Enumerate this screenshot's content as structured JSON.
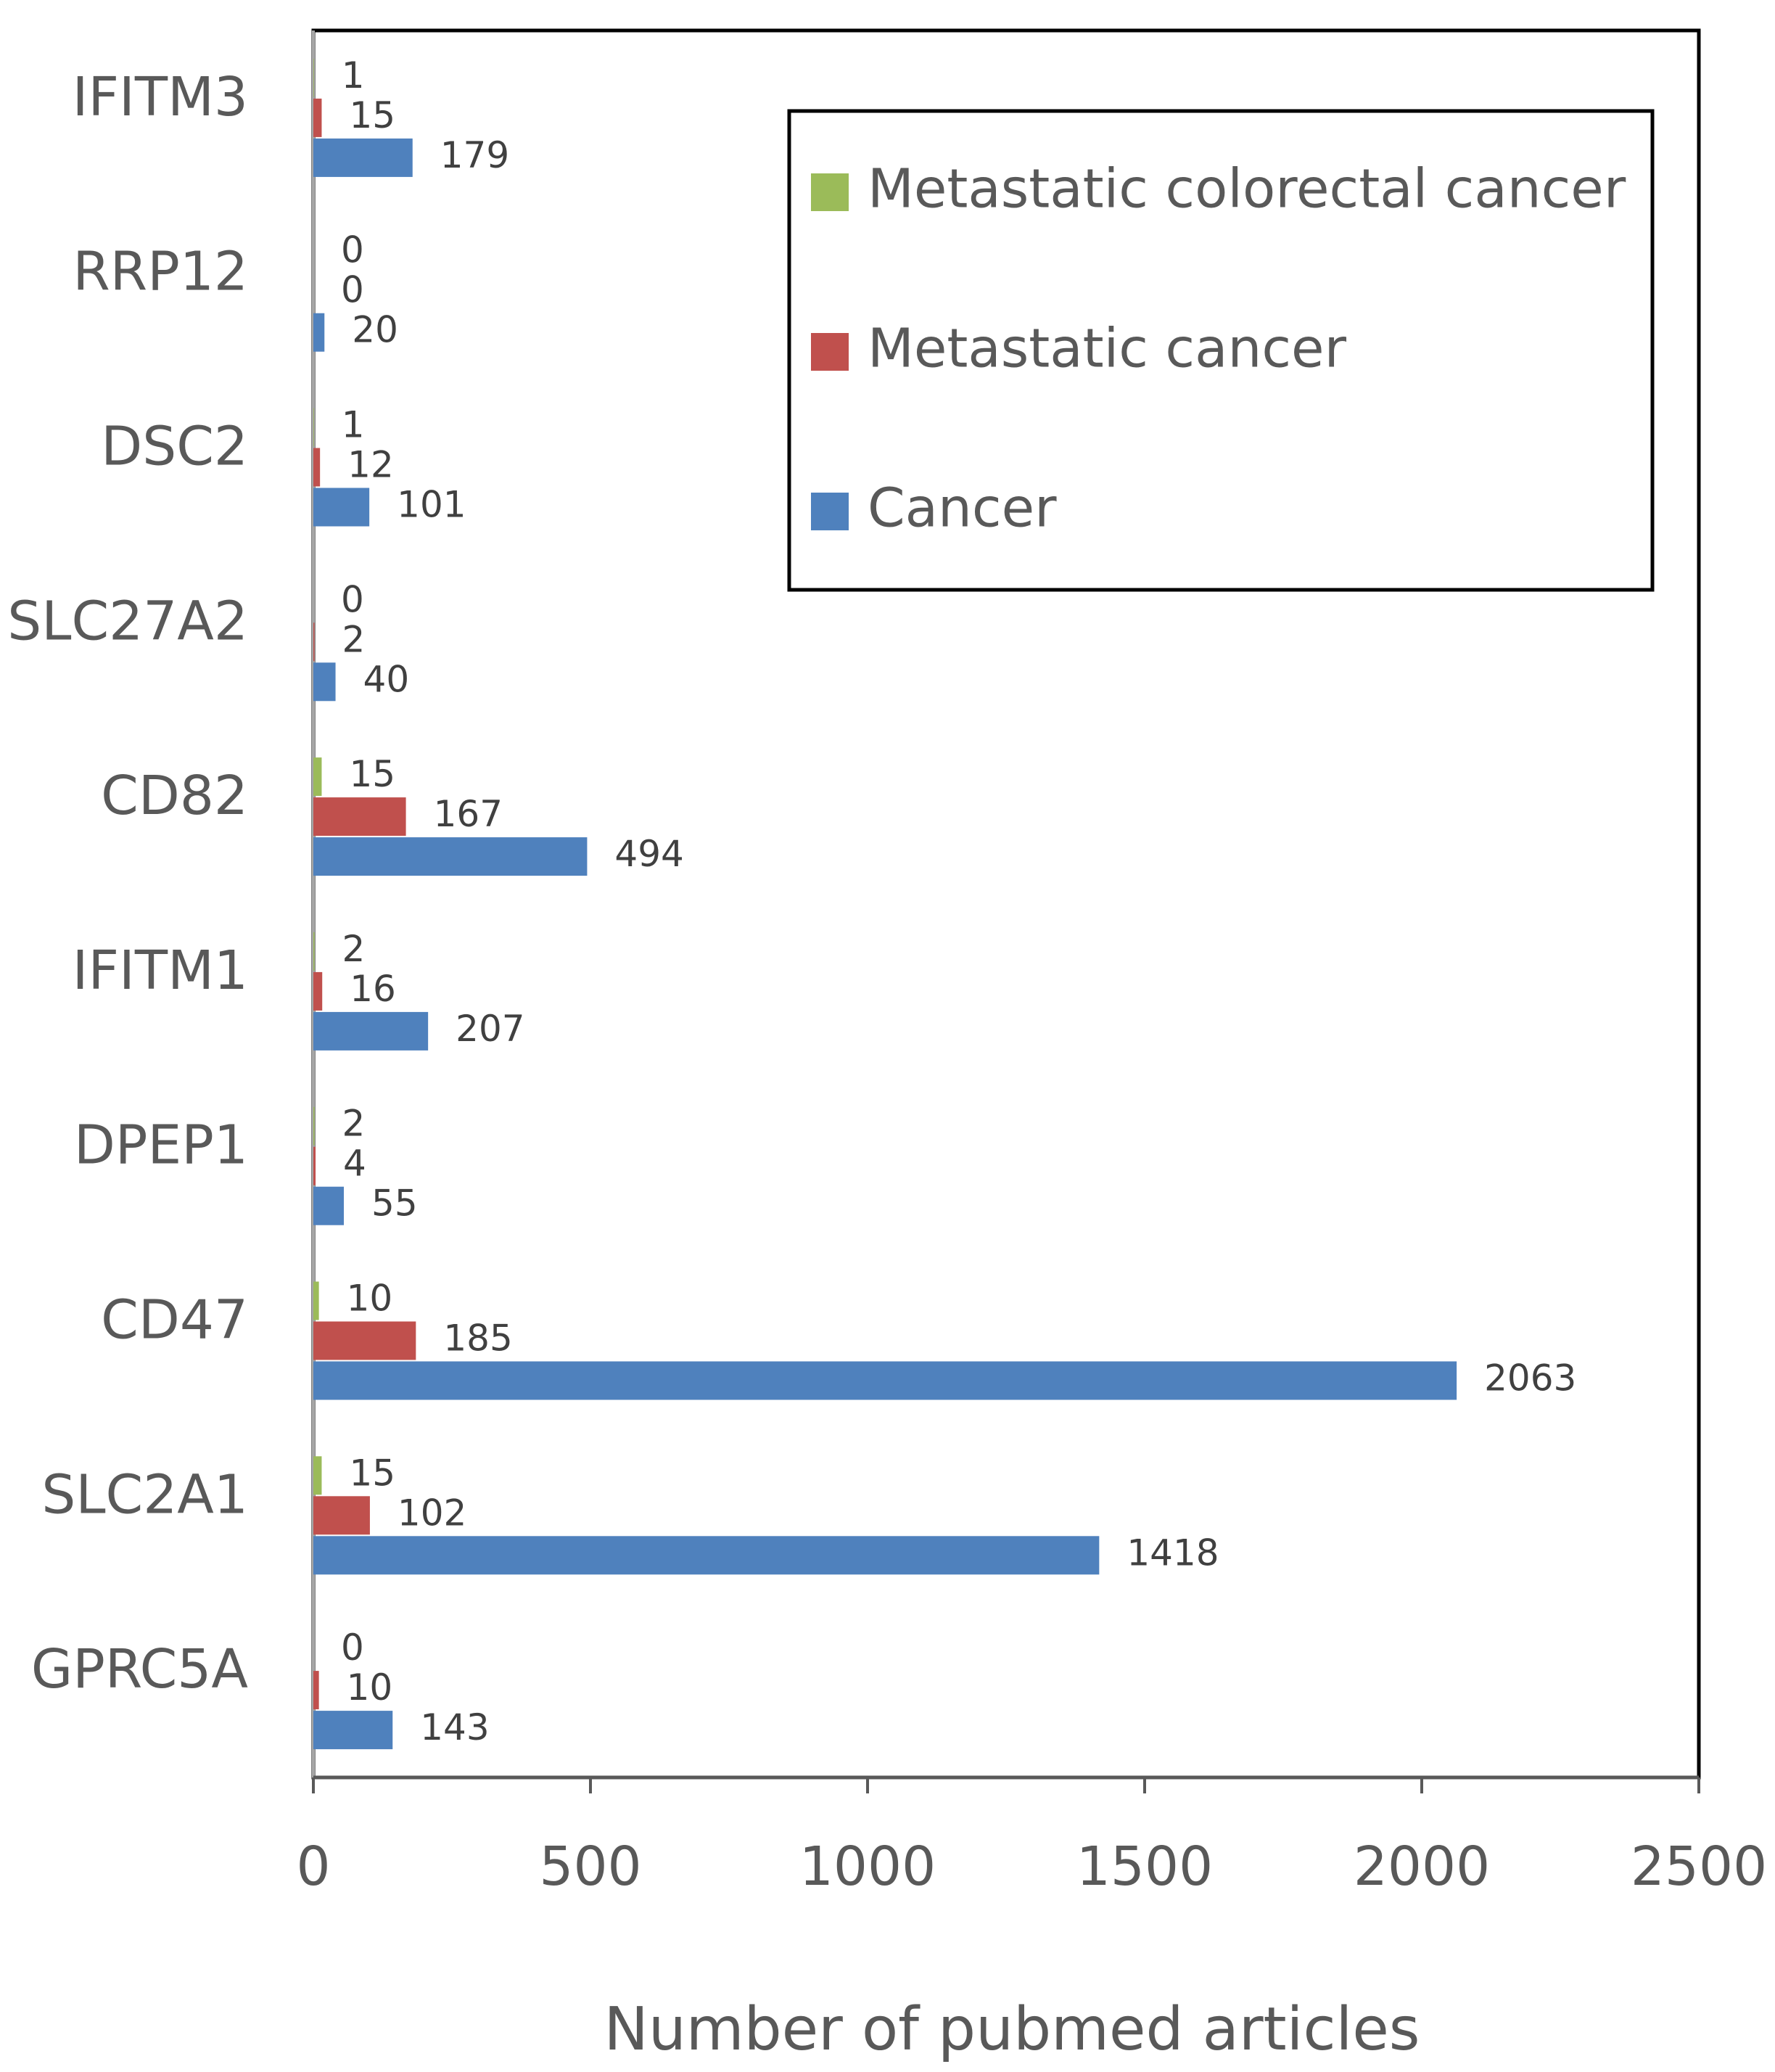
{
  "chart_data": {
    "type": "bar",
    "orientation": "horizontal",
    "categories": [
      "IFITM3",
      "RRP12",
      "DSC2",
      "SLC27A2",
      "CD82",
      "IFITM1",
      "DPEP1",
      "CD47",
      "SLC2A1",
      "GPRC5A"
    ],
    "series": [
      {
        "name": "Metastatic colorectal cancer",
        "color": "#9bbb59",
        "values": [
          1,
          0,
          1,
          0,
          15,
          2,
          2,
          10,
          15,
          0
        ]
      },
      {
        "name": "Metastatic cancer",
        "color": "#c0504d",
        "values": [
          15,
          0,
          12,
          2,
          167,
          16,
          4,
          185,
          102,
          10
        ]
      },
      {
        "name": "Cancer",
        "color": "#4f81bd",
        "values": [
          179,
          20,
          101,
          40,
          494,
          207,
          55,
          2063,
          1418,
          143
        ]
      }
    ],
    "xlabel": "Number of pubmed articles",
    "ylabel": "",
    "xlim": [
      0,
      2500
    ],
    "xticks": [
      0,
      500,
      1000,
      1500,
      2000,
      2500
    ],
    "grid": false,
    "legend_position": "top-right",
    "legend_order": [
      "Metastatic colorectal cancer",
      "Metastatic cancer",
      "Cancer"
    ]
  }
}
